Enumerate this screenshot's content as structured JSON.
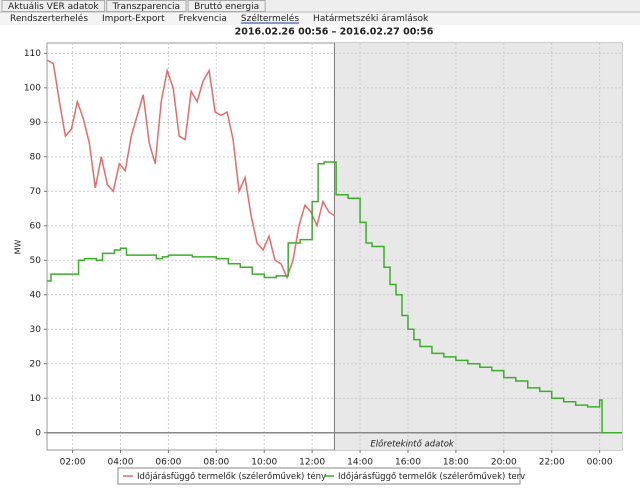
{
  "tabs": [
    "Aktuális VER adatok",
    "Transzparencia",
    "Bruttó energia"
  ],
  "subtabs": {
    "items": [
      "Rendszerterhelés",
      "Import-Export",
      "Frekvencia",
      "Széltermelés",
      "Határmetszéki áramlások"
    ],
    "selected": 3
  },
  "chart_data": {
    "type": "line",
    "line_style": "step-after",
    "title": "2016.02.26 00:56 – 2016.02.27 00:56",
    "y_label": "MW",
    "xlim": [
      0.933,
      24.933
    ],
    "xticks": [
      {
        "value": 2,
        "label": "02:00"
      },
      {
        "value": 4,
        "label": "04:00"
      },
      {
        "value": 6,
        "label": "06:00"
      },
      {
        "value": 8,
        "label": "08:00"
      },
      {
        "value": 10,
        "label": "10:00"
      },
      {
        "value": 12,
        "label": "12:00"
      },
      {
        "value": 14,
        "label": "14:00"
      },
      {
        "value": 16,
        "label": "16:00"
      },
      {
        "value": 18,
        "label": "18:00"
      },
      {
        "value": 20,
        "label": "20:00"
      },
      {
        "value": 22,
        "label": "22:00"
      },
      {
        "value": 24,
        "label": "00:00"
      }
    ],
    "ylim": [
      -5,
      113
    ],
    "yticks": [
      0,
      10,
      20,
      30,
      40,
      50,
      60,
      70,
      80,
      90,
      100,
      110
    ],
    "grid": true,
    "legend": "bottom",
    "annotation": {
      "text": "Előretekintő adatok",
      "x_start": 12.93
    },
    "series": [
      {
        "name": "Időjárásfüggő termelők (szélerőművek) tény",
        "color": "#e86a6a",
        "step": false,
        "x": [
          0.95,
          1.2,
          1.45,
          1.7,
          1.95,
          2.2,
          2.45,
          2.7,
          2.95,
          3.2,
          3.45,
          3.7,
          3.95,
          4.2,
          4.45,
          4.7,
          4.95,
          5.2,
          5.45,
          5.7,
          5.95,
          6.2,
          6.45,
          6.7,
          6.95,
          7.2,
          7.45,
          7.7,
          7.95,
          8.2,
          8.45,
          8.7,
          8.95,
          9.2,
          9.45,
          9.7,
          9.95,
          10.2,
          10.45,
          10.7,
          10.95,
          11.2,
          11.45,
          11.7,
          11.95,
          12.2,
          12.45,
          12.7,
          12.93
        ],
        "values": [
          108,
          107,
          96,
          86,
          88,
          96,
          91,
          84,
          71,
          80,
          72,
          70,
          78,
          76,
          86,
          92,
          98,
          84,
          78,
          96,
          105,
          100,
          86,
          85,
          99,
          96,
          102,
          105,
          93,
          92,
          93,
          85,
          70,
          74,
          63,
          55,
          53,
          57,
          50,
          49,
          45,
          50,
          60,
          66,
          64,
          60,
          67,
          64,
          63
        ]
      },
      {
        "name": "Időjárásfüggő termelők (szélerőművek) terv",
        "color": "#3cae2c",
        "step": true,
        "x": [
          0.95,
          1.1,
          2.0,
          2.25,
          2.5,
          3.0,
          3.25,
          3.75,
          4.0,
          4.25,
          5.0,
          5.5,
          5.75,
          6.0,
          7.0,
          8.0,
          8.5,
          9.0,
          9.5,
          10.0,
          10.5,
          11.0,
          11.5,
          12.0,
          12.25,
          12.5,
          13.0,
          13.5,
          14.0,
          14.25,
          14.5,
          15.0,
          15.25,
          15.5,
          15.75,
          16.0,
          16.25,
          16.5,
          17.0,
          17.5,
          18.0,
          18.5,
          19.0,
          19.5,
          20.0,
          20.5,
          21.0,
          21.5,
          22.0,
          22.5,
          23.0,
          23.5,
          24.0,
          24.1,
          24.93
        ],
        "values": [
          44,
          46,
          46,
          50,
          50.5,
          50,
          52,
          53,
          53.5,
          51.5,
          51.5,
          50.5,
          51,
          51.5,
          51,
          50.5,
          49,
          48,
          46,
          45,
          45.5,
          55,
          56,
          67,
          78,
          78.5,
          69,
          68,
          61,
          55,
          54,
          48,
          43,
          40,
          34,
          30,
          27,
          25,
          23,
          22,
          21,
          20,
          19,
          18,
          16,
          15,
          13,
          12,
          10,
          9,
          8,
          7.5,
          9.5,
          0,
          0
        ]
      }
    ]
  }
}
